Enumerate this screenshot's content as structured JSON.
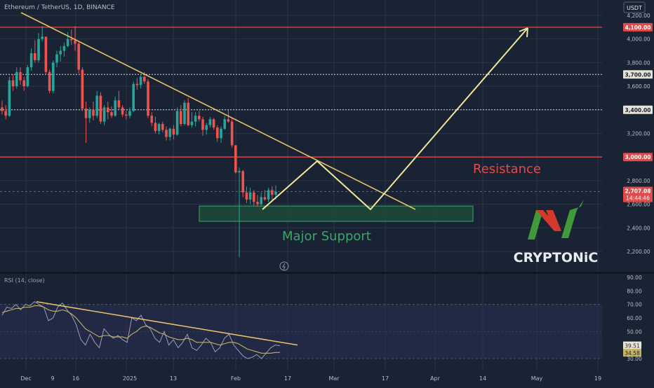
{
  "header": {
    "symbol_label": "Ethereum / TetherUS, 1D, BINANCE",
    "currency_badge": "USDT"
  },
  "colors": {
    "background": "#1a2333",
    "grid": "#2a3446",
    "up_candle": "#26a69a",
    "down_candle": "#ef5350",
    "horizontal_red": "#e04a4a",
    "trendline": "#e6c46a",
    "projection": "#f2e89a",
    "support_zone_fill": "#1f4a3a",
    "support_zone_stroke": "#3fa46a",
    "resistance_text": "#e04a4a",
    "support_text": "#3fa46a",
    "rsi_line": "#9c9fb8",
    "rsi_ma": "#c7b06a",
    "logo_green": "#3f9a3c",
    "logo_red": "#d43a2c",
    "logo_text": "#e8ecf3"
  },
  "annotations": {
    "resistance": "Resistance",
    "support": "Major Support"
  },
  "logo": {
    "text": "CRYPTONiC"
  },
  "rsi_panel": {
    "label": "RSI (14, close)",
    "value_badge": "39.51",
    "ma_badge": "34.58"
  },
  "chart_data": [
    {
      "type": "candlestick",
      "title": "Ethereum / TetherUS, 1D, BINANCE",
      "ylim": [
        2100,
        4220
      ],
      "y_ticks": [
        4200,
        4000,
        3800,
        3600,
        3400,
        3200,
        3000,
        2800,
        2600,
        2400,
        2200
      ],
      "y_tick_labels": [
        "4,200.00",
        "4,000.00",
        "3,800.00",
        "3,600.00",
        "3,400.00",
        "3,200.00",
        "3,000.00",
        "2,800.00",
        "2,600.00",
        "2,400.00",
        "2,200.00"
      ],
      "x_tick_labels": [
        "Dec",
        "9",
        "16",
        "2025",
        "13",
        "Feb",
        "17",
        "Mar",
        "17",
        "Apr",
        "14",
        "May",
        "19"
      ],
      "price_labels": {
        "level_4100": "4,100.00",
        "level_3700": "3,700.00",
        "level_3400": "3,400.00",
        "level_3000": "3,000.00",
        "current_price": "2,707.08",
        "countdown": "14:44:46"
      },
      "horizontal_levels": [
        4100,
        3700,
        3400,
        3000
      ],
      "support_zone": [
        2455,
        2585
      ],
      "candles_ohlc": [
        [
          3420,
          3480,
          3360,
          3390
        ],
        [
          3390,
          3440,
          3320,
          3350
        ],
        [
          3350,
          3680,
          3340,
          3650
        ],
        [
          3650,
          3700,
          3560,
          3600
        ],
        [
          3600,
          3760,
          3580,
          3720
        ],
        [
          3720,
          3760,
          3610,
          3650
        ],
        [
          3650,
          3680,
          3560,
          3600
        ],
        [
          3600,
          3780,
          3590,
          3760
        ],
        [
          3760,
          3920,
          3730,
          3880
        ],
        [
          3880,
          3990,
          3800,
          3820
        ],
        [
          3820,
          4050,
          3800,
          4000
        ],
        [
          4000,
          4110,
          3980,
          4020
        ],
        [
          4020,
          4020,
          3700,
          3720
        ],
        [
          3720,
          3740,
          3540,
          3560
        ],
        [
          3560,
          3820,
          3540,
          3800
        ],
        [
          3800,
          3900,
          3760,
          3870
        ],
        [
          3870,
          3940,
          3810,
          3900
        ],
        [
          3900,
          3970,
          3850,
          3940
        ],
        [
          3940,
          4060,
          3930,
          4000
        ],
        [
          4000,
          4080,
          3950,
          3990
        ],
        [
          3990,
          4110,
          3900,
          3960
        ],
        [
          3960,
          3980,
          3710,
          3740
        ],
        [
          3740,
          3760,
          3390,
          3410
        ],
        [
          3410,
          3470,
          3120,
          3330
        ],
        [
          3330,
          3420,
          3290,
          3400
        ],
        [
          3400,
          3470,
          3310,
          3350
        ],
        [
          3350,
          3560,
          3330,
          3520
        ],
        [
          3520,
          3550,
          3280,
          3300
        ],
        [
          3300,
          3440,
          3270,
          3420
        ],
        [
          3420,
          3470,
          3320,
          3380
        ],
        [
          3380,
          3430,
          3330,
          3350
        ],
        [
          3350,
          3510,
          3340,
          3480
        ],
        [
          3480,
          3560,
          3400,
          3420
        ],
        [
          3420,
          3440,
          3340,
          3360
        ],
        [
          3360,
          3390,
          3320,
          3350
        ],
        [
          3350,
          3420,
          3330,
          3390
        ],
        [
          3390,
          3640,
          3380,
          3620
        ],
        [
          3620,
          3670,
          3570,
          3610
        ],
        [
          3610,
          3700,
          3580,
          3680
        ],
        [
          3680,
          3720,
          3620,
          3640
        ],
        [
          3640,
          3660,
          3330,
          3350
        ],
        [
          3350,
          3380,
          3260,
          3290
        ],
        [
          3290,
          3340,
          3200,
          3220
        ],
        [
          3220,
          3290,
          3190,
          3280
        ],
        [
          3280,
          3300,
          3210,
          3230
        ],
        [
          3230,
          3260,
          3140,
          3170
        ],
        [
          3170,
          3250,
          3140,
          3240
        ],
        [
          3240,
          3270,
          3150,
          3190
        ],
        [
          3190,
          3420,
          3180,
          3390
        ],
        [
          3390,
          3440,
          3260,
          3280
        ],
        [
          3280,
          3480,
          3270,
          3460
        ],
        [
          3460,
          3500,
          3260,
          3270
        ],
        [
          3270,
          3380,
          3250,
          3300
        ],
        [
          3300,
          3380,
          3260,
          3350
        ],
        [
          3350,
          3390,
          3300,
          3320
        ],
        [
          3320,
          3340,
          3180,
          3230
        ],
        [
          3230,
          3290,
          3190,
          3270
        ],
        [
          3270,
          3340,
          3250,
          3320
        ],
        [
          3320,
          3330,
          3230,
          3250
        ],
        [
          3250,
          3270,
          3130,
          3160
        ],
        [
          3160,
          3260,
          3120,
          3240
        ],
        [
          3240,
          3350,
          3230,
          3320
        ],
        [
          3320,
          3400,
          3290,
          3300
        ],
        [
          3300,
          3330,
          3080,
          3100
        ],
        [
          3100,
          2950,
          2860,
          2870
        ],
        [
          2870,
          2910,
          2150,
          2880
        ],
        [
          2880,
          2890,
          2660,
          2700
        ],
        [
          2700,
          2750,
          2610,
          2640
        ],
        [
          2640,
          2740,
          2600,
          2700
        ],
        [
          2700,
          2720,
          2590,
          2620
        ],
        [
          2620,
          2680,
          2580,
          2600
        ],
        [
          2600,
          2700,
          2580,
          2660
        ],
        [
          2660,
          2720,
          2630,
          2640
        ],
        [
          2640,
          2740,
          2620,
          2720
        ],
        [
          2720,
          2750,
          2620,
          2680
        ],
        [
          2680,
          2760,
          2640,
          2707
        ]
      ],
      "projection_path": [
        [
          "Feb 8",
          2570
        ],
        [
          "Feb 24",
          2980
        ],
        [
          "Mar 12",
          2570
        ],
        [
          "Apr 29",
          4130
        ]
      ]
    },
    {
      "type": "line",
      "title": "RSI (14, close)",
      "ylim": [
        25,
        92
      ],
      "y_ticks": [
        90,
        80,
        70,
        60,
        50,
        40,
        30
      ],
      "y_tick_labels": [
        "90.00",
        "80.00",
        "70.00",
        "60.00",
        "50.00",
        "40.00",
        "30.00"
      ],
      "reference_levels": [
        70,
        30
      ],
      "series": [
        {
          "values": [
            62,
            68,
            67,
            70,
            66,
            70,
            69,
            72,
            70,
            68,
            58,
            60,
            68,
            71,
            66,
            62,
            55,
            44,
            40,
            48,
            42,
            38,
            52,
            48,
            45,
            47,
            44,
            42,
            60,
            58,
            62,
            55,
            52,
            45,
            42,
            50,
            40,
            44,
            38,
            42,
            48,
            38,
            36,
            40,
            45,
            42,
            35,
            38,
            45,
            48,
            40,
            36,
            32,
            30,
            31,
            33,
            30,
            34,
            38,
            40,
            39.51
          ]
        },
        {
          "values": [
            64,
            65,
            66,
            67,
            67,
            68,
            68,
            69,
            69,
            68,
            66,
            65,
            65,
            66,
            65,
            63,
            60,
            56,
            52,
            50,
            48,
            46,
            47,
            47,
            46,
            46,
            46,
            45,
            48,
            50,
            53,
            54,
            53,
            51,
            49,
            48,
            46,
            45,
            44,
            44,
            45,
            44,
            42,
            42,
            42,
            42,
            41,
            40,
            41,
            42,
            42,
            41,
            39,
            37,
            36,
            35,
            34,
            34,
            34,
            34.5,
            34.58
          ]
        }
      ],
      "trendline": [
        72,
        40
      ]
    }
  ]
}
